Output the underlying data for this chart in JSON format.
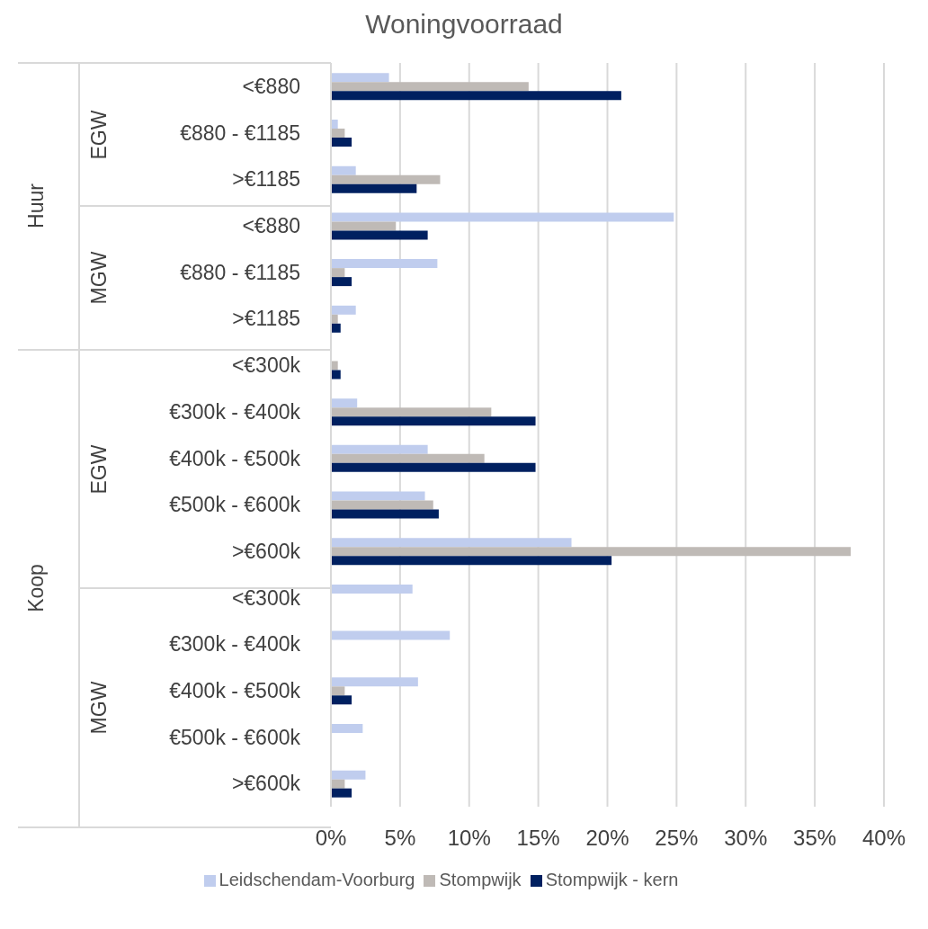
{
  "chart_data": {
    "type": "bar",
    "orientation": "horizontal",
    "title": "Woningvoorraad",
    "categories": [
      "<€880",
      "€880 - €1185",
      ">€1185",
      "<€880",
      "€880 - €1185",
      ">€1185",
      "<€300k",
      "€300k - €400k",
      "€400k - €500k",
      "€500k - €600k",
      ">€600k",
      "<€300k",
      "€300k - €400k",
      "€400k - €500k",
      "€500k - €600k",
      ">€600k"
    ],
    "series": [
      {
        "name": "Leidschendam-Voorburg",
        "color": "#c0cdee",
        "values": [
          4.2,
          0.5,
          1.8,
          24.8,
          7.7,
          1.8,
          0,
          1.9,
          7.0,
          6.8,
          17.4,
          5.9,
          8.6,
          6.3,
          2.3,
          2.5
        ]
      },
      {
        "name": "Stompwijk",
        "color": "#bfbab6",
        "values": [
          14.3,
          1.0,
          7.9,
          4.7,
          1.0,
          0.5,
          0.5,
          11.6,
          11.1,
          7.4,
          37.6,
          0,
          0,
          1.0,
          0,
          1.0
        ]
      },
      {
        "name": "Stompwijk - kern",
        "color": "#002060",
        "values": [
          21.0,
          1.5,
          6.2,
          7.0,
          1.5,
          0.7,
          0.7,
          14.8,
          14.8,
          7.8,
          20.3,
          0,
          0,
          1.5,
          0,
          1.5
        ]
      }
    ],
    "xlim": [
      0,
      40
    ],
    "xticks": [
      {
        "value": 0,
        "label": "0%"
      },
      {
        "value": 5,
        "label": "5%"
      },
      {
        "value": 10,
        "label": "10%"
      },
      {
        "value": 15,
        "label": "15%"
      },
      {
        "value": 20,
        "label": "20%"
      },
      {
        "value": 25,
        "label": "25%"
      },
      {
        "value": 30,
        "label": "30%"
      },
      {
        "value": 35,
        "label": "35%"
      },
      {
        "value": 40,
        "label": "40%"
      }
    ],
    "annotations": [
      "Huur",
      "Koop",
      "EGW",
      "MGW",
      "EGW",
      "MGW"
    ],
    "grid": "x",
    "legend": "bottom"
  }
}
